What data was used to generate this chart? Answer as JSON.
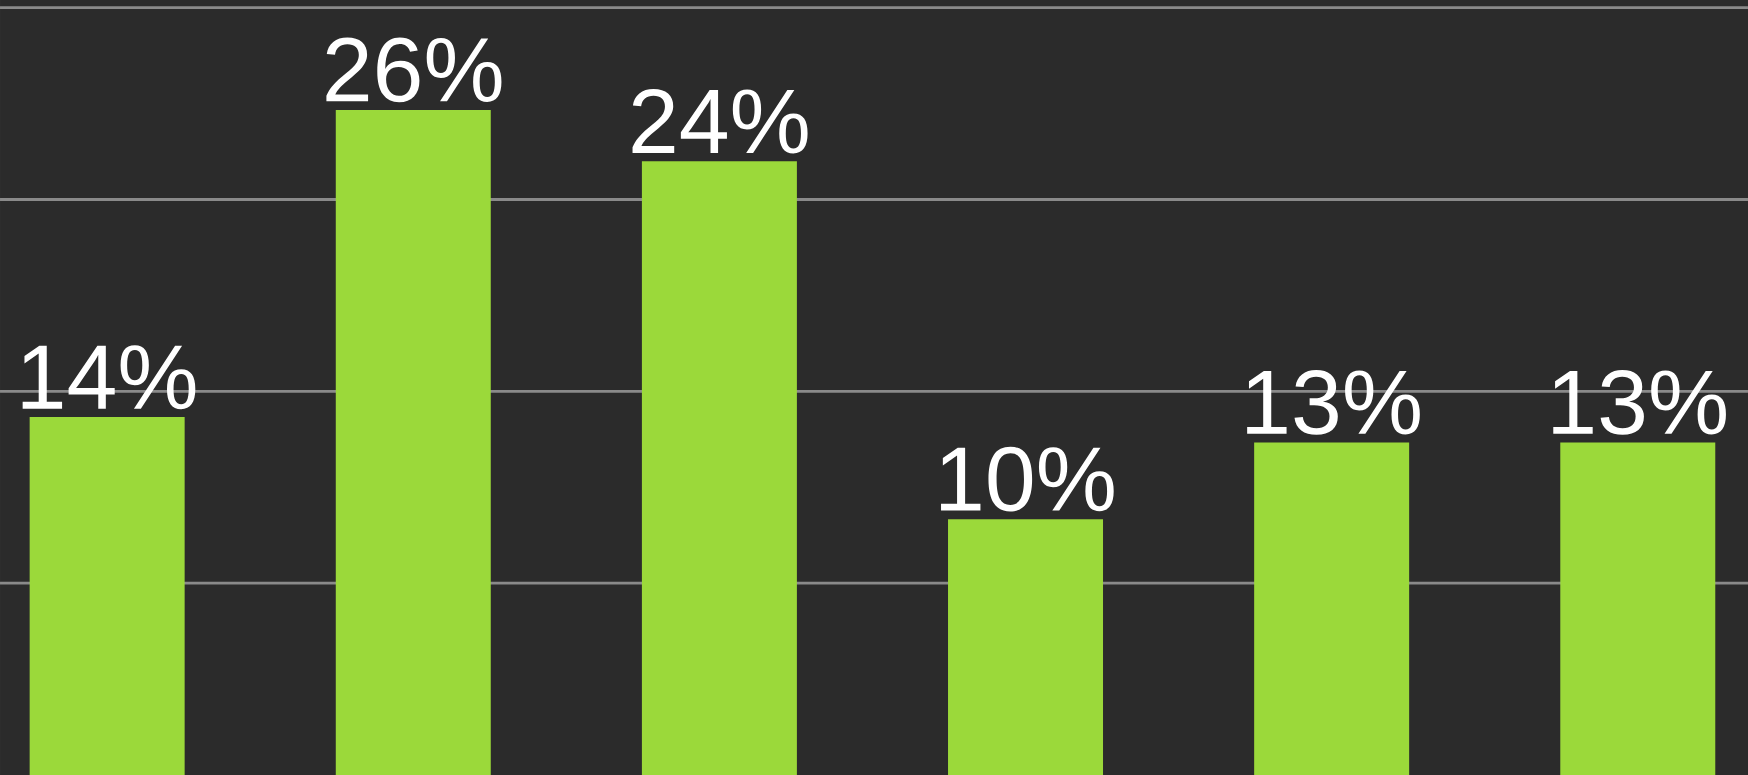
{
  "chart_data": {
    "type": "bar",
    "categories": [
      null,
      null,
      null,
      null,
      null,
      null
    ],
    "values": [
      14,
      26,
      24,
      10,
      13,
      13
    ],
    "value_labels": [
      "14%",
      "26%",
      "24%",
      "10%",
      "13%",
      "13%"
    ],
    "color": "#9bd93a",
    "ylim": [
      0,
      30.3
    ],
    "yticks": [
      {
        "value": 7.5,
        "label": null
      },
      {
        "value": 15,
        "label": null
      },
      {
        "value": 22.5,
        "label": null
      },
      {
        "value": 30,
        "label": null
      }
    ],
    "grid": "y"
  }
}
